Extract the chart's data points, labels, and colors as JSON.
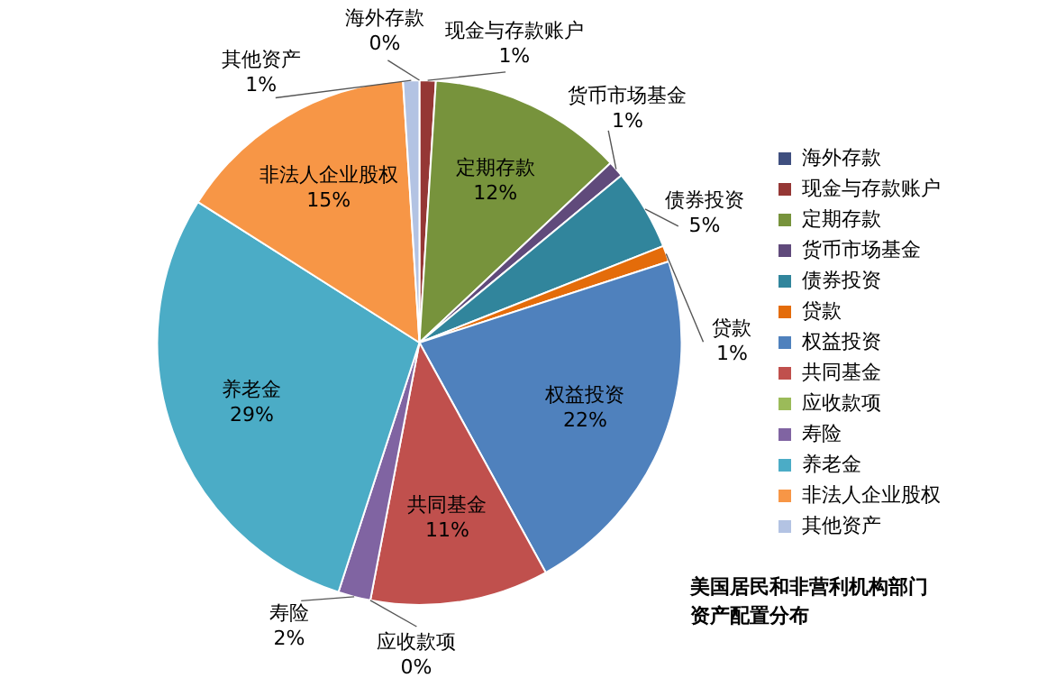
{
  "chart_data": {
    "type": "pie",
    "title": "美国居民和非营利机构部门资产配置分布",
    "categories": [
      "海外存款",
      "现金与存款账户",
      "定期存款",
      "货币市场基金",
      "债券投资",
      "贷款",
      "权益投资",
      "共同基金",
      "应收款项",
      "寿险",
      "养老金",
      "非法人企业股权",
      "其他资产"
    ],
    "values": [
      0,
      1,
      12,
      1,
      5,
      1,
      22,
      11,
      0,
      2,
      29,
      15,
      1
    ],
    "colors": [
      "#3f4f7f",
      "#953735",
      "#77933c",
      "#604a7b",
      "#31859c",
      "#e46c0a",
      "#4f81bd",
      "#c0504d",
      "#9bbb59",
      "#8064a2",
      "#4bacc6",
      "#f79646",
      "#b3c3e3"
    ],
    "value_labels": [
      "0%",
      "1%",
      "12%",
      "1%",
      "5%",
      "1%",
      "22%",
      "11%",
      "0%",
      "2%",
      "29%",
      "15%",
      "1%"
    ],
    "legend": "right"
  }
}
